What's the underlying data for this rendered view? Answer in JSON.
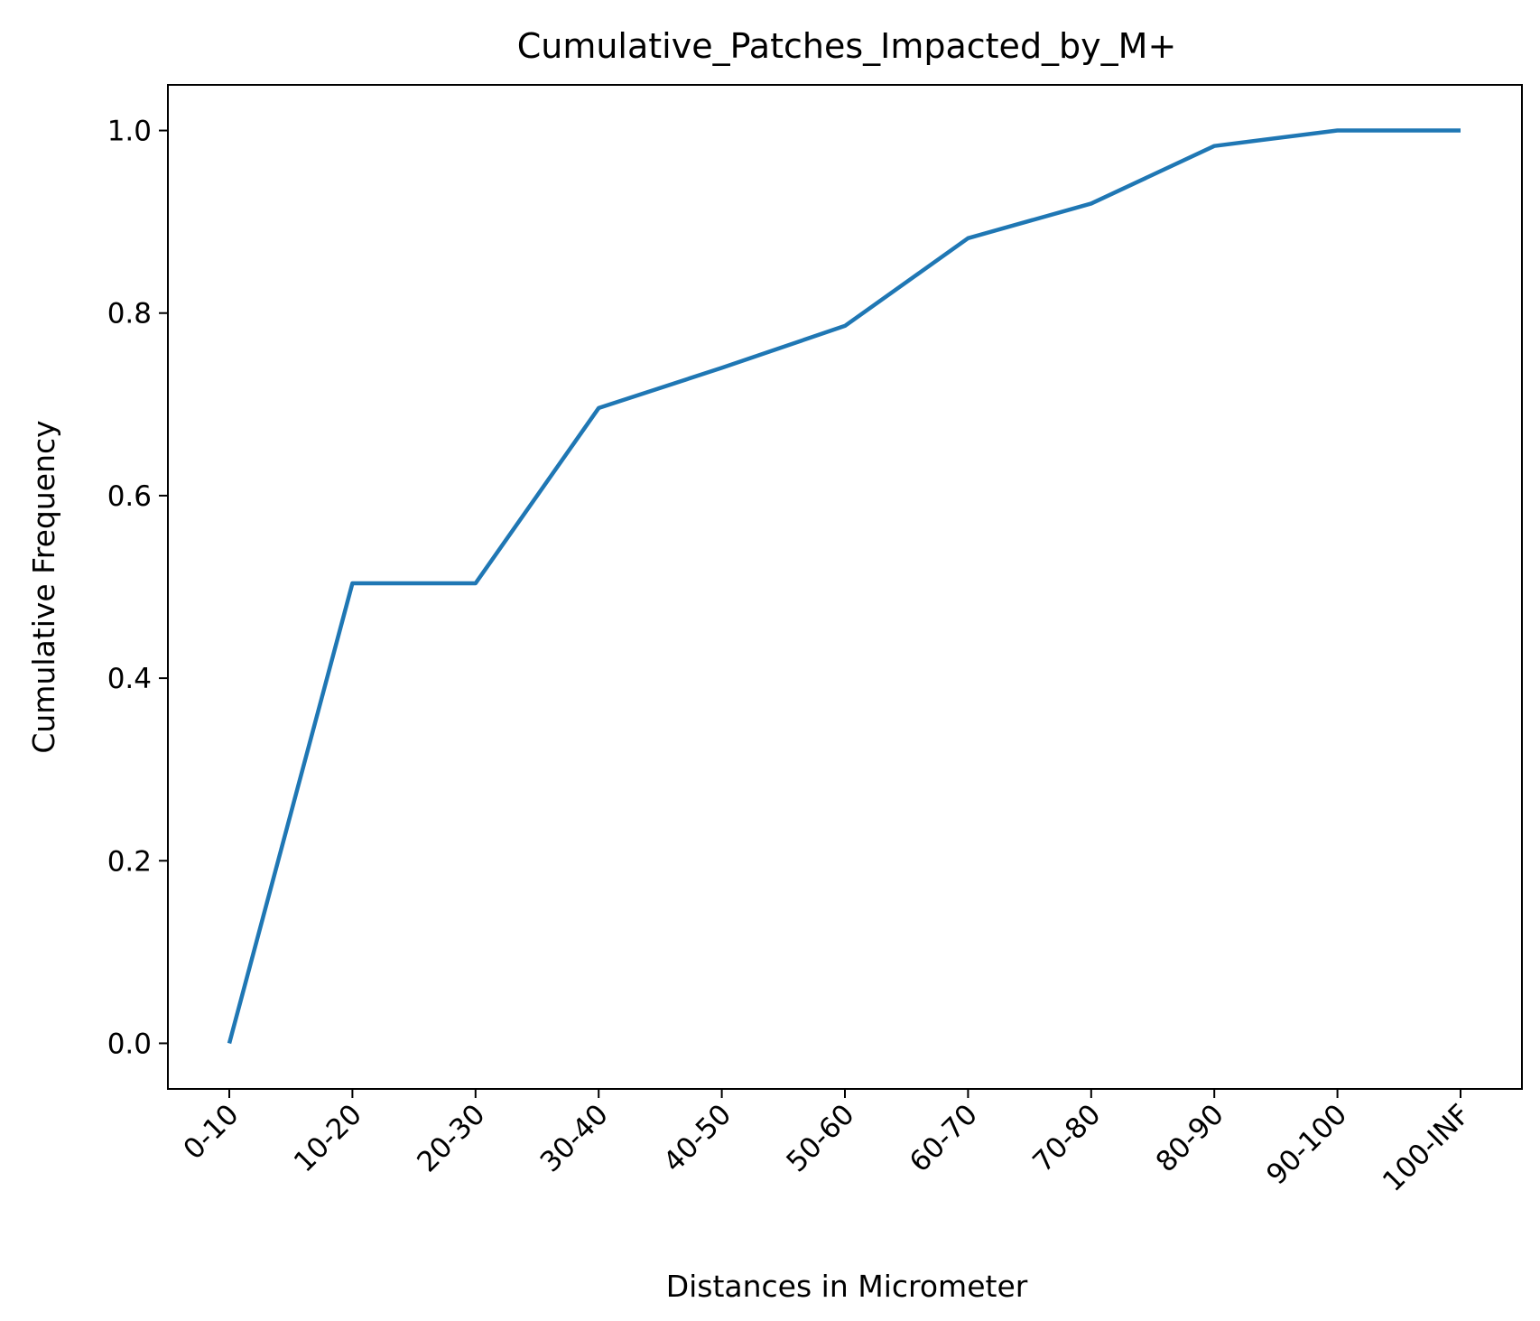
{
  "chart_data": {
    "type": "line",
    "title": "Cumulative_Patches_Impacted_by_M+",
    "xlabel": "Distances in Micrometer",
    "ylabel": "Cumulative Frequency",
    "categories": [
      "0-10",
      "10-20",
      "20-30",
      "30-40",
      "40-50",
      "50-60",
      "60-70",
      "70-80",
      "80-90",
      "90-100",
      "100-INF"
    ],
    "series": [
      {
        "values": [
          0.0,
          0.504,
          0.504,
          0.696,
          0.74,
          0.786,
          0.882,
          0.92,
          0.983,
          1.0,
          1.0
        ],
        "color": "#1f77b4"
      }
    ],
    "ylim": [
      -0.05,
      1.05
    ],
    "yticks": [
      0.0,
      0.2,
      0.4,
      0.6,
      0.8,
      1.0
    ],
    "ytick_labels": [
      "0.0",
      "0.2",
      "0.4",
      "0.6",
      "0.8",
      "1.0"
    ],
    "grid": false,
    "legend": "none"
  }
}
